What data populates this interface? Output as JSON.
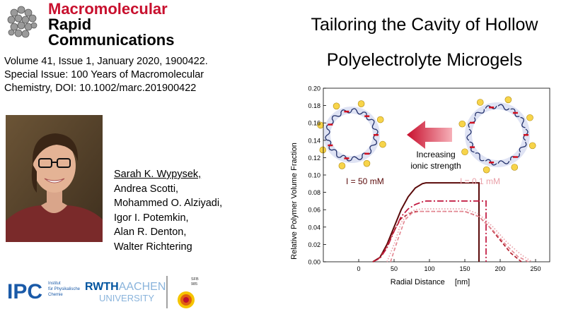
{
  "journal": {
    "name_line1": "Macromolecular",
    "name_line2": "Rapid",
    "name_line3": "Communications",
    "logo_icon": "molecule-cluster-icon"
  },
  "citation": {
    "line1": "Volume 41, Issue 1, January 2020, 1900422.",
    "line2": "Special Issue: 100 Years of Macromolecular",
    "line3": "Chemistry, DOI: 10.1002/marc.201900422"
  },
  "title": {
    "line1": "Tailoring the Cavity of Hollow",
    "line2": "Polyelectrolyte Microgels"
  },
  "authors": [
    "Sarah K. Wypysek,",
    "Andrea Scotti,",
    "Mohammed O. Alziyadi,",
    "Igor I. Potemkin,",
    "Alan R. Denton,",
    "Walter Richtering"
  ],
  "logos": {
    "ipc_mark": "IPC",
    "ipc_text_line1": "Institut",
    "ipc_text_line2": "für Physikalische",
    "ipc_text_line3": "Chemie",
    "rwth_line1_a": "RWTH",
    "rwth_line1_b": "AACHEN",
    "rwth_line2": "UNIVERSITY",
    "sfb_line1": "SFB",
    "sfb_line2": "985"
  },
  "colors": {
    "journal_red": "#c8102e",
    "dark_curve": "#5a0a0a",
    "mid_curve": "#c0143c",
    "light_curve": "#e9a0a8",
    "ipc_blue": "#1a5aa8",
    "rwth_blue": "#00549f"
  },
  "chart_data": {
    "type": "line",
    "xlabel": "Radial Distance",
    "xunit": "[nm]",
    "ylabel": "Relative Polymer Volume Fraction",
    "xlim": [
      -50,
      270
    ],
    "ylim": [
      0,
      0.2
    ],
    "xticks": [
      0,
      50,
      100,
      150,
      200,
      250
    ],
    "yticks": [
      "0.00",
      "0.02",
      "0.04",
      "0.06",
      "0.08",
      "0.10",
      "0.12",
      "0.14",
      "0.16",
      "0.18",
      "0.20"
    ],
    "grid": false,
    "annotations": {
      "high_salt": "I = 50 mM",
      "low_salt": "I = 0.1 mM",
      "arrow_text_line1": "Increasing",
      "arrow_text_line2": "ionic strength"
    },
    "series": [
      {
        "style": "solid",
        "color": "#5a0a0a",
        "x": [
          20,
          30,
          40,
          50,
          60,
          70,
          80,
          90,
          95,
          170,
          170
        ],
        "y": [
          0,
          0.005,
          0.02,
          0.04,
          0.06,
          0.075,
          0.085,
          0.09,
          0.091,
          0.091,
          0
        ]
      },
      {
        "style": "dashdot",
        "color": "#c0143c",
        "x": [
          20,
          30,
          40,
          50,
          60,
          70,
          80,
          90,
          95,
          100,
          180,
          180
        ],
        "y": [
          0,
          0.004,
          0.016,
          0.035,
          0.052,
          0.061,
          0.066,
          0.069,
          0.07,
          0.07,
          0.07,
          0
        ]
      },
      {
        "style": "dashed",
        "color": "#b52030",
        "x": [
          20,
          30,
          40,
          50,
          60,
          70,
          80,
          150,
          170,
          185,
          200,
          215,
          230
        ],
        "y": [
          0,
          0.005,
          0.018,
          0.036,
          0.05,
          0.055,
          0.058,
          0.058,
          0.052,
          0.04,
          0.025,
          0.01,
          0
        ]
      },
      {
        "style": "dotted",
        "color": "#e9a0a8",
        "x": [
          40,
          50,
          60,
          70,
          80,
          90,
          150,
          170,
          190,
          210,
          230,
          245
        ],
        "y": [
          0,
          0.02,
          0.045,
          0.056,
          0.06,
          0.061,
          0.061,
          0.055,
          0.04,
          0.022,
          0.008,
          0
        ]
      },
      {
        "style": "dashed",
        "color": "#e48a94",
        "x": [
          45,
          55,
          65,
          75,
          85,
          150,
          170,
          190,
          210,
          225,
          240
        ],
        "y": [
          0,
          0.025,
          0.048,
          0.056,
          0.058,
          0.058,
          0.052,
          0.036,
          0.018,
          0.006,
          0
        ]
      }
    ]
  }
}
